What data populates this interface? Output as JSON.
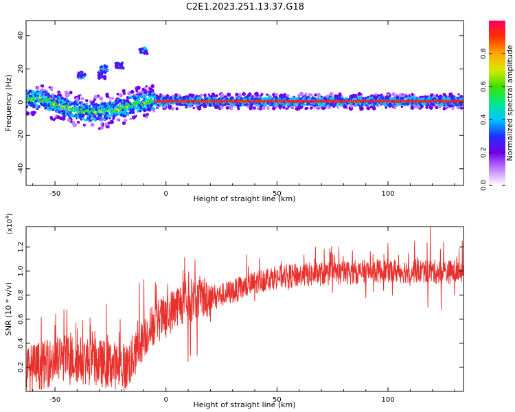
{
  "title": "C2E1.2023.251.13.37.G18",
  "colors": {
    "snr_line": "#e8302c"
  },
  "chart_data": [
    {
      "type": "heatmap",
      "xlabel": "Height of straight line (km)",
      "ylabel": "Frequency (Hz)",
      "xlim": [
        -63,
        134
      ],
      "ylim": [
        -50,
        49
      ],
      "x_ticks": [
        "-50",
        "0",
        "50",
        "100"
      ],
      "y_ticks": [
        "40",
        "20",
        "0",
        "-20",
        "-40"
      ],
      "grid": false,
      "colorbar": {
        "label": "Normalized spectral amplitude",
        "range": [
          0,
          1
        ],
        "ticks": [
          "0.0",
          "0.2",
          "0.4",
          "0.6",
          "0.8"
        ],
        "colormap": [
          "#ffffff",
          "#c080ff",
          "#7000e8",
          "#2030ff",
          "#00c8ff",
          "#00e888",
          "#40e000",
          "#d8e800",
          "#ffa800",
          "#ff3000",
          "#ff0060"
        ]
      },
      "ridge": [
        [
          -63,
          2
        ],
        [
          -55,
          1.5
        ],
        [
          -50,
          -1
        ],
        [
          -45,
          -3
        ],
        [
          -40,
          -5
        ],
        [
          -35,
          -6
        ],
        [
          -30,
          -6
        ],
        [
          -25,
          -5
        ],
        [
          -20,
          -3.5
        ],
        [
          -15,
          -1.5
        ],
        [
          -10,
          0
        ],
        [
          -5,
          0.5
        ],
        [
          0,
          0.5
        ],
        [
          134,
          0.5
        ]
      ],
      "blobs": [
        [
          -38,
          16
        ],
        [
          -29,
          16
        ],
        [
          -21,
          22
        ],
        [
          -28,
          20
        ],
        [
          -10,
          31
        ]
      ]
    },
    {
      "type": "line",
      "xlabel": "Height of straight line (km)",
      "ylabel": "SNR (10 * v/v)",
      "yunit": "(x10",
      "yunit_exp": "4",
      "yunit_close": ")",
      "xlim": [
        -63,
        134
      ],
      "ylim": [
        0,
        1.37
      ],
      "x_ticks": [
        "-50",
        "0",
        "50",
        "100"
      ],
      "y_ticks": [
        "1.2",
        "1.0",
        "0.8",
        "0.6",
        "0.4",
        "0.2"
      ],
      "grid": false,
      "envelope": [
        [
          -63,
          0.18
        ],
        [
          -55,
          0.22
        ],
        [
          -45,
          0.28
        ],
        [
          -35,
          0.25
        ],
        [
          -25,
          0.22
        ],
        [
          -18,
          0.2
        ],
        [
          -14,
          0.3
        ],
        [
          -10,
          0.45
        ],
        [
          -5,
          0.58
        ],
        [
          0,
          0.62
        ],
        [
          5,
          0.72
        ],
        [
          10,
          0.75
        ],
        [
          15,
          0.78
        ],
        [
          25,
          0.8
        ],
        [
          35,
          0.86
        ],
        [
          45,
          0.94
        ],
        [
          55,
          0.96
        ],
        [
          65,
          0.97
        ],
        [
          75,
          0.98
        ],
        [
          85,
          0.99
        ],
        [
          95,
          1.0
        ],
        [
          105,
          1.0
        ],
        [
          115,
          1.0
        ],
        [
          125,
          0.99
        ],
        [
          134,
          1.0
        ]
      ],
      "peaks": [
        [
          -50,
          0.55
        ],
        [
          -46,
          0.68
        ],
        [
          -40,
          0.52
        ],
        [
          -34,
          0.55
        ],
        [
          -32,
          0.5
        ],
        [
          -25,
          0.38
        ],
        [
          -12,
          0.9
        ],
        [
          -10,
          0.93
        ],
        [
          -5,
          0.55
        ],
        [
          4,
          0.6
        ],
        [
          8,
          0.82
        ],
        [
          12,
          0.82
        ],
        [
          18,
          0.66
        ],
        [
          34,
          0.93
        ],
        [
          52,
          1.08
        ],
        [
          67,
          1.1
        ],
        [
          76,
          1.13
        ],
        [
          84,
          1.17
        ],
        [
          100,
          1.23
        ],
        [
          112,
          1.25
        ],
        [
          119,
          1.37
        ],
        [
          125,
          1.24
        ],
        [
          131,
          1.12
        ]
      ],
      "dips": [
        [
          0,
          0.45
        ],
        [
          10,
          0.25
        ],
        [
          11,
          0.3
        ],
        [
          14,
          0.3
        ],
        [
          20,
          0.58
        ],
        [
          40,
          0.75
        ],
        [
          90,
          0.78
        ],
        [
          102,
          0.8
        ],
        [
          118,
          0.7
        ],
        [
          124,
          0.68
        ],
        [
          130,
          0.8
        ]
      ]
    }
  ]
}
